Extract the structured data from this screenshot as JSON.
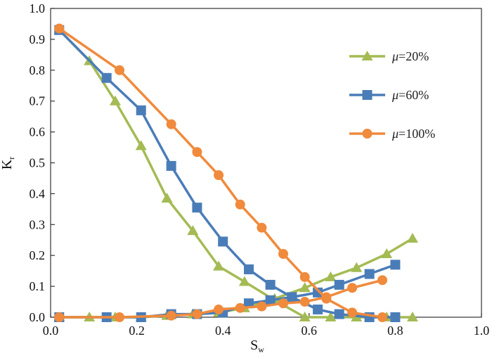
{
  "chart_data": {
    "type": "line",
    "title": "",
    "xlabel": {
      "main": "S",
      "sub": "w"
    },
    "ylabel": {
      "main": "K",
      "sub": "r"
    },
    "xlim": [
      0.0,
      1.0
    ],
    "ylim": [
      0.0,
      1.0
    ],
    "xticks": [
      "0.0",
      "0.2",
      "0.4",
      "0.6",
      "0.8",
      "1.0"
    ],
    "yticks": [
      "0.0",
      "0.1",
      "0.2",
      "0.3",
      "0.4",
      "0.5",
      "0.6",
      "0.7",
      "0.8",
      "0.9",
      "1.0"
    ],
    "grid": false,
    "legend_position": "top-right",
    "series": [
      {
        "name": "μ=20%",
        "legend_symbol": "μ",
        "legend_rest": "=20%",
        "color": "#a4bb54",
        "marker": "triangle",
        "curves": [
          {
            "x": [
              0.02,
              0.09,
              0.15,
              0.21,
              0.27,
              0.33,
              0.39,
              0.45,
              0.52,
              0.59,
              0.65,
              0.71,
              0.78,
              0.84
            ],
            "y": [
              0.93,
              0.83,
              0.7,
              0.555,
              0.385,
              0.28,
              0.165,
              0.115,
              0.055,
              0.0,
              0.0,
              0.0,
              0.0,
              0.0
            ]
          },
          {
            "x": [
              0.02,
              0.09,
              0.15,
              0.21,
              0.27,
              0.33,
              0.39,
              0.45,
              0.52,
              0.59,
              0.65,
              0.71,
              0.78,
              0.84
            ],
            "y": [
              0.0,
              0.0,
              0.0,
              0.0,
              0.005,
              0.01,
              0.015,
              0.03,
              0.06,
              0.095,
              0.13,
              0.16,
              0.205,
              0.255
            ]
          }
        ]
      },
      {
        "name": "μ=60%",
        "legend_symbol": "μ",
        "legend_rest": "=60%",
        "color": "#4a7db8",
        "marker": "square",
        "curves": [
          {
            "x": [
              0.02,
              0.13,
              0.21,
              0.28,
              0.34,
              0.4,
              0.46,
              0.51,
              0.56,
              0.62,
              0.67,
              0.74,
              0.8
            ],
            "y": [
              0.93,
              0.775,
              0.67,
              0.49,
              0.355,
              0.245,
              0.155,
              0.105,
              0.065,
              0.025,
              0.01,
              0.0,
              0.0
            ]
          },
          {
            "x": [
              0.02,
              0.13,
              0.21,
              0.28,
              0.34,
              0.4,
              0.46,
              0.51,
              0.56,
              0.62,
              0.67,
              0.74,
              0.8
            ],
            "y": [
              0.0,
              0.0,
              0.0,
              0.01,
              0.01,
              0.015,
              0.045,
              0.055,
              0.065,
              0.08,
              0.105,
              0.14,
              0.17
            ]
          }
        ]
      },
      {
        "name": "μ=100%",
        "legend_symbol": "μ",
        "legend_rest": "=100%",
        "color": "#f08a3c",
        "marker": "circle",
        "curves": [
          {
            "x": [
              0.02,
              0.16,
              0.28,
              0.34,
              0.39,
              0.44,
              0.49,
              0.54,
              0.59,
              0.64,
              0.7,
              0.77
            ],
            "y": [
              0.935,
              0.8,
              0.625,
              0.535,
              0.46,
              0.365,
              0.29,
              0.205,
              0.13,
              0.06,
              0.015,
              0.0
            ]
          },
          {
            "x": [
              0.02,
              0.16,
              0.28,
              0.34,
              0.39,
              0.44,
              0.49,
              0.54,
              0.59,
              0.64,
              0.7,
              0.77
            ],
            "y": [
              0.0,
              0.0,
              0.005,
              0.01,
              0.025,
              0.03,
              0.035,
              0.045,
              0.05,
              0.065,
              0.095,
              0.12
            ]
          }
        ]
      }
    ]
  }
}
